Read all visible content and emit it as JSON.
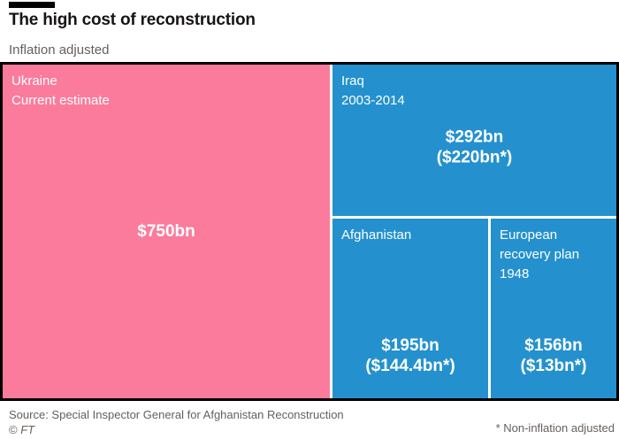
{
  "header": {
    "title": "The high cost of reconstruction",
    "subtitle": "Inflation adjusted"
  },
  "treemap": {
    "cells": {
      "ukraine": {
        "label_lines": [
          "Ukraine",
          "Current estimate"
        ],
        "value_lines": [
          "$750bn"
        ],
        "color": "#fb7b9c"
      },
      "iraq": {
        "label_lines": [
          "Iraq",
          "2003-2014"
        ],
        "value_lines": [
          "$292bn",
          "($220bn*)"
        ],
        "color": "#2491ce"
      },
      "afghanistan": {
        "label_lines": [
          "Afghanistan"
        ],
        "value_lines": [
          "$195bn",
          "($144.4bn*)"
        ],
        "color": "#2491ce"
      },
      "european_recovery": {
        "label_lines": [
          "European",
          "recovery plan",
          "1948"
        ],
        "value_lines": [
          "$156bn",
          "($13bn*)"
        ],
        "color": "#2491ce"
      }
    }
  },
  "footer": {
    "source": "Source: Special Inspector General for Afghanistan Reconstruction",
    "copyright_symbol": "©",
    "copyright_brand": "FT",
    "footnote": "* Non-inflation adjusted"
  },
  "chart_data": {
    "type": "treemap",
    "title": "The high cost of reconstruction",
    "subtitle": "Inflation adjusted",
    "unit": "US$ billions, inflation adjusted (non-inflation adjusted in parentheses)",
    "items": [
      {
        "name": "Ukraine",
        "detail": "Current estimate",
        "value_bn": 750,
        "color": "#fb7b9c"
      },
      {
        "name": "Iraq",
        "detail": "2003-2014",
        "value_bn": 292,
        "nominal_bn": 220,
        "color": "#2491ce"
      },
      {
        "name": "Afghanistan",
        "detail": "",
        "value_bn": 195,
        "nominal_bn": 144.4,
        "color": "#2491ce"
      },
      {
        "name": "European recovery plan",
        "detail": "1948",
        "value_bn": 156,
        "nominal_bn": 13,
        "color": "#2491ce"
      }
    ],
    "source": "Source: Special Inspector General for Afghanistan Reconstruction",
    "footnote": "* Non-inflation adjusted",
    "legend_position": "none",
    "grid": false
  }
}
